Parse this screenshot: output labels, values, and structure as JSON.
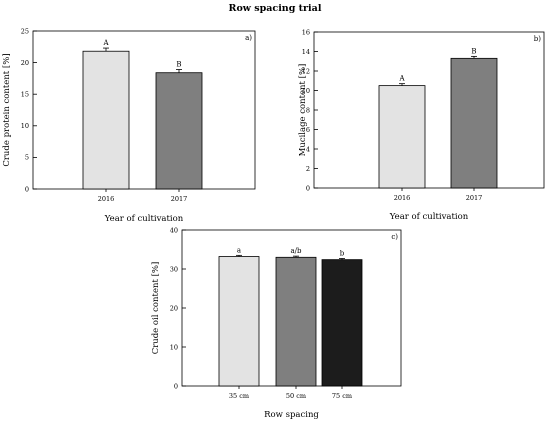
{
  "figure_title": "Row spacing trial",
  "chart_data": [
    {
      "type": "bar",
      "panel_label": "a)",
      "categories": [
        "2016",
        "2017"
      ],
      "values": [
        21.8,
        18.4
      ],
      "error": [
        0.5,
        0.5
      ],
      "significance": [
        "A",
        "B"
      ],
      "colors": [
        "#e3e3e3",
        "#7f7f7f"
      ],
      "ylabel": "Crude protein content [%]",
      "xlabel": "Year of cultivation",
      "ylim": [
        0,
        25
      ],
      "yticks": [
        0,
        5,
        10,
        15,
        20,
        25
      ]
    },
    {
      "type": "bar",
      "panel_label": "b)",
      "categories": [
        "2016",
        "2017"
      ],
      "values": [
        10.5,
        13.3
      ],
      "error": [
        0.2,
        0.2
      ],
      "significance": [
        "A",
        "B"
      ],
      "colors": [
        "#e3e3e3",
        "#7f7f7f"
      ],
      "ylabel": "Mucilage content [%]",
      "xlabel": "Year of cultivation",
      "ylim": [
        0,
        16
      ],
      "yticks": [
        0,
        2,
        4,
        6,
        8,
        10,
        12,
        14,
        16
      ]
    },
    {
      "type": "bar",
      "panel_label": "c)",
      "categories": [
        "35 cm",
        "50 cm",
        "75 cm"
      ],
      "values": [
        33.2,
        33.0,
        32.4
      ],
      "error": [
        0.3,
        0.3,
        0.3
      ],
      "significance": [
        "a",
        "a/b",
        "b"
      ],
      "colors": [
        "#e3e3e3",
        "#7f7f7f",
        "#1c1c1c"
      ],
      "ylabel": "Crude oil content [%]",
      "xlabel": "Row spacing",
      "ylim": [
        0,
        40
      ],
      "yticks": [
        0,
        10,
        20,
        30,
        40
      ]
    }
  ]
}
